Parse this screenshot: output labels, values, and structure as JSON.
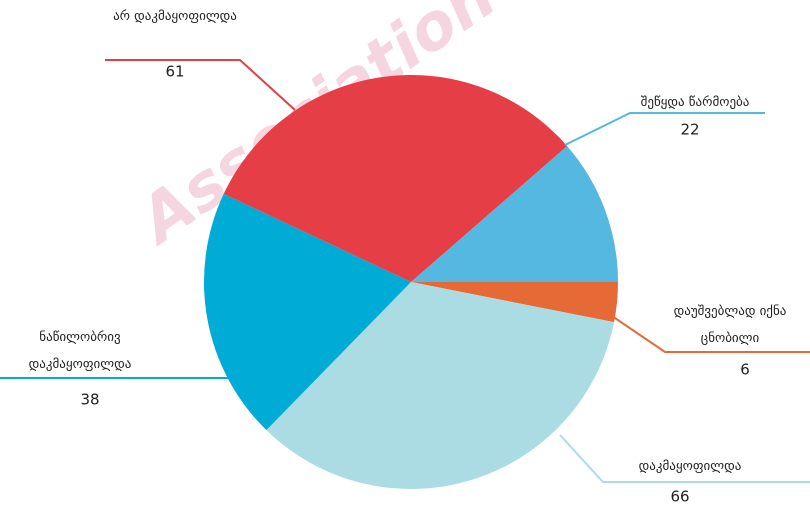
{
  "chart_data": {
    "type": "pie",
    "watermark": "Association",
    "categories": [
      "დაუშვებლად იქნა ცნობილი",
      "დაკმაყოფილდა",
      "ნაწილობრივ დაკმაყოფილდა",
      "არ დაკმაყოფილდა",
      "შეწყდა წარმოება"
    ],
    "values": [
      6,
      66,
      38,
      61,
      22
    ],
    "colors": [
      "#e66a36",
      "#acdce3",
      "#00acd6",
      "#e63e46",
      "#55b8e0"
    ]
  }
}
